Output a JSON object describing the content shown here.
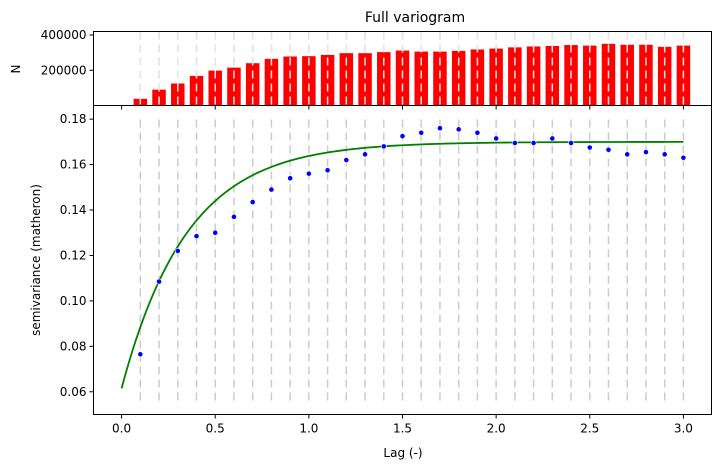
{
  "chart_data": [
    {
      "type": "bar",
      "title": "Full variogram",
      "ylabel": "N",
      "xlim": [
        -0.15,
        3.15
      ],
      "ylim": [
        0,
        420000
      ],
      "yticks": [
        200000,
        400000
      ],
      "ytick_labels": [
        "200000",
        "400000"
      ],
      "bar_color": "#ff0000",
      "grid": "vertical dashed lines at lag bins",
      "x": [
        0.1,
        0.2,
        0.3,
        0.4,
        0.5,
        0.6,
        0.7,
        0.8,
        0.9,
        1.0,
        1.1,
        1.2,
        1.3,
        1.4,
        1.5,
        1.6,
        1.7,
        1.8,
        1.9,
        2.0,
        2.1,
        2.2,
        2.3,
        2.4,
        2.5,
        2.6,
        2.7,
        2.8,
        2.9,
        3.0
      ],
      "values": [
        38000,
        90000,
        125000,
        168000,
        198000,
        215000,
        240000,
        265000,
        278000,
        280000,
        287000,
        297000,
        297000,
        303000,
        312000,
        306000,
        306000,
        310000,
        318000,
        323000,
        330000,
        335000,
        338000,
        343000,
        340000,
        350000,
        345000,
        345000,
        333000,
        340000
      ]
    },
    {
      "type": "scatter",
      "xlabel": "Lag (-)",
      "ylabel": "semivariance (matheron)",
      "xlim": [
        -0.15,
        3.15
      ],
      "ylim": [
        0.05,
        0.186
      ],
      "xticks": [
        0.0,
        0.5,
        1.0,
        1.5,
        2.0,
        2.5,
        3.0
      ],
      "xtick_labels": [
        "0.0",
        "0.5",
        "1.0",
        "1.5",
        "2.0",
        "2.5",
        "3.0"
      ],
      "yticks": [
        0.06,
        0.08,
        0.1,
        0.12,
        0.14,
        0.16,
        0.18
      ],
      "ytick_labels": [
        "0.06",
        "0.08",
        "0.10",
        "0.12",
        "0.14",
        "0.16",
        "0.18"
      ],
      "series": [
        {
          "marker_color": "#0000ff",
          "x": [
            0.1,
            0.2,
            0.3,
            0.4,
            0.5,
            0.6,
            0.7,
            0.8,
            0.9,
            1.0,
            1.1,
            1.2,
            1.3,
            1.4,
            1.5,
            1.6,
            1.7,
            1.8,
            1.9,
            2.0,
            2.1,
            2.2,
            2.3,
            2.4,
            2.5,
            2.6,
            2.7,
            2.8,
            2.9,
            3.0
          ],
          "y": [
            0.0765,
            0.1085,
            0.122,
            0.1285,
            0.13,
            0.137,
            0.1435,
            0.149,
            0.154,
            0.156,
            0.1575,
            0.162,
            0.1645,
            0.168,
            0.1725,
            0.174,
            0.176,
            0.1755,
            0.174,
            0.1715,
            0.1695,
            0.1695,
            0.1715,
            0.1695,
            0.1675,
            0.1665,
            0.1645,
            0.1655,
            0.1645,
            0.163
          ]
        },
        {
          "line_color": "#008000",
          "model": "exponential",
          "nugget": 0.0615,
          "sill": 0.1085,
          "range": 1.05,
          "x_start": 0.0,
          "x_end": 3.0
        }
      ]
    }
  ]
}
